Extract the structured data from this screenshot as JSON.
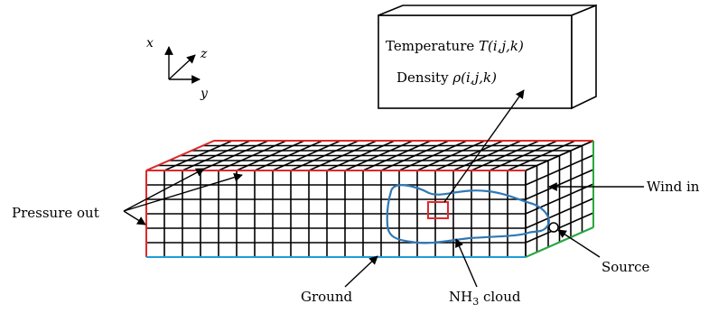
{
  "axes": {
    "x": "x",
    "z": "z",
    "y": "y"
  },
  "box": {
    "line1_prefix": "Temperature ",
    "line1_symbol": "T(i,j,k)",
    "line2_prefix": "Density ",
    "line2_symbol": "ρ(i,j,k)"
  },
  "labels": {
    "pressure_out": "Pressure out",
    "wind_in": "Wind in",
    "source": "Source",
    "ground": "Ground",
    "cloud_main": "NH",
    "cloud_sub": "3",
    "cloud_suffix": " cloud"
  },
  "colors": {
    "grid": "#000000",
    "outlet_boundary": "#e0282a",
    "ground_boundary": "#1e9cd8",
    "inlet_boundary": "#2aa83a",
    "cloud": "#2f78b6",
    "cell_highlight": "#e0282a"
  }
}
